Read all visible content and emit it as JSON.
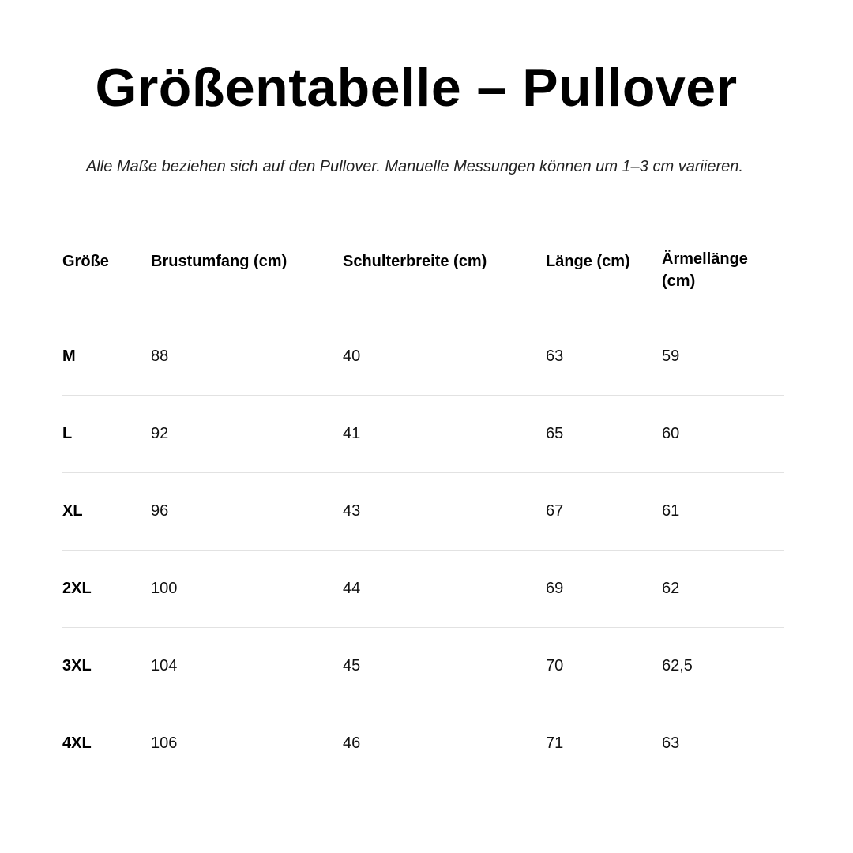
{
  "title": "Größentabelle – Pullover",
  "subtitle": "Alle Maße beziehen sich auf den Pullover. Manuelle Messungen können um 1–3 cm variieren.",
  "table": {
    "headers": [
      "Größe",
      "Brustumfang (cm)",
      "Schulterbreite (cm)",
      "Länge (cm)",
      "Ärmellänge (cm)"
    ],
    "rows": [
      [
        "M",
        "88",
        "40",
        "63",
        "59"
      ],
      [
        "L",
        "92",
        "41",
        "65",
        "60"
      ],
      [
        "XL",
        "96",
        "43",
        "67",
        "61"
      ],
      [
        "2XL",
        "100",
        "44",
        "69",
        "62"
      ],
      [
        "3XL",
        "104",
        "45",
        "70",
        "62,5"
      ],
      [
        "4XL",
        "106",
        "46",
        "71",
        "63"
      ]
    ]
  }
}
